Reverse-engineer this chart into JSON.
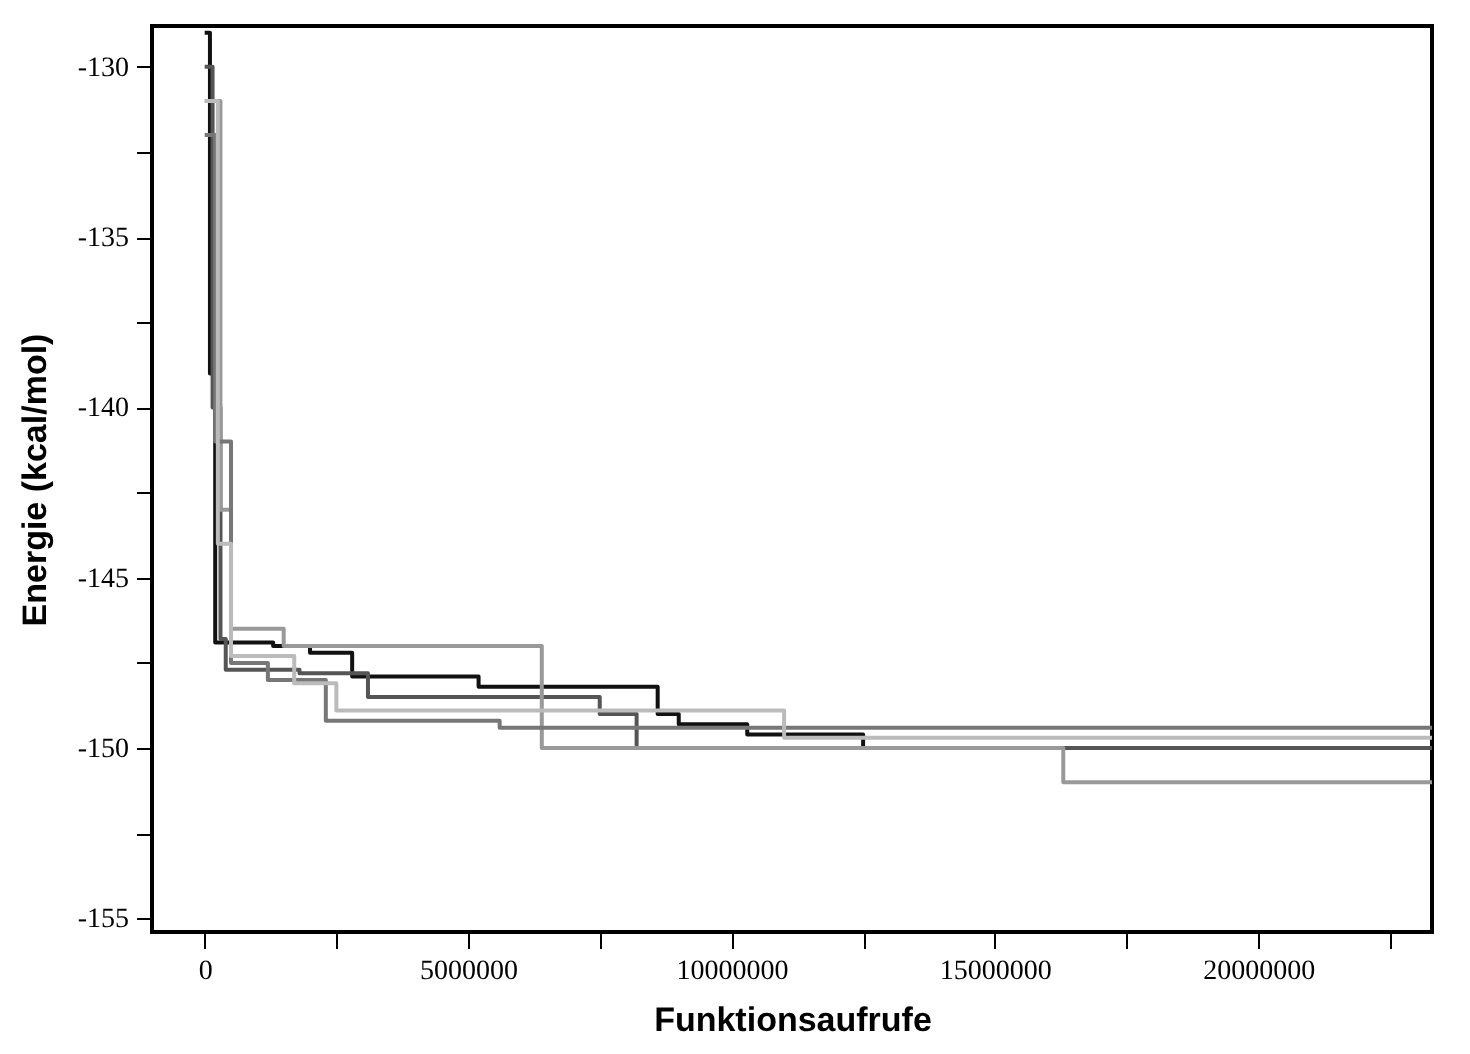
{
  "chart_data": {
    "type": "step",
    "xlabel": "Funktionsaufrufe",
    "ylabel": "Energie (kcal/mol)",
    "xlim": [
      -1000000,
      23300000
    ],
    "ylim": [
      -155.4,
      -128.8
    ],
    "xticks": [
      0,
      {
        "value": 2500000,
        "label": null
      },
      5000000,
      {
        "value": 7500000,
        "label": null
      },
      10000000,
      {
        "value": 12500000,
        "label": null
      },
      15000000,
      {
        "value": 17500000,
        "label": null
      },
      20000000,
      {
        "value": 22500000,
        "label": null
      }
    ],
    "yticks": [
      -155,
      {
        "value": -152.5,
        "label": null
      },
      -150,
      {
        "value": -147.5,
        "label": null
      },
      -145,
      {
        "value": -142.5,
        "label": null
      },
      -140,
      {
        "value": -137.5,
        "label": null
      },
      -135,
      {
        "value": -132.5,
        "label": null
      },
      -130
    ],
    "grid": false,
    "legend": false,
    "marker": "none",
    "line_style": "solid",
    "series": [
      {
        "color": "#111111",
        "x": [
          0,
          100000,
          200000,
          1300000,
          2000000,
          2800000,
          5200000,
          8600000,
          9000000,
          10300000,
          12500000,
          23300000
        ],
        "values": [
          -129,
          -139,
          -146.9,
          -147.0,
          -147.2,
          -147.9,
          -148.2,
          -149.0,
          -149.3,
          -149.6,
          -150.0,
          -150.0
        ]
      },
      {
        "color": "#555555",
        "x": [
          0,
          150000,
          300000,
          400000,
          1800000,
          3100000,
          7500000,
          8200000,
          23300000
        ],
        "values": [
          -130,
          -140,
          -146.8,
          -147.7,
          -147.8,
          -148.5,
          -149.0,
          -150.0,
          -150.0
        ]
      },
      {
        "color": "#999999",
        "x": [
          0,
          300000,
          500000,
          1500000,
          6400000,
          16300000,
          23300000
        ],
        "values": [
          -131,
          -143,
          -146.5,
          -147.0,
          -150.0,
          -151.0,
          -151.0
        ]
      },
      {
        "color": "#777777",
        "x": [
          0,
          200000,
          500000,
          1200000,
          2300000,
          5600000,
          23300000
        ],
        "values": [
          -132,
          -141,
          -147.5,
          -148.0,
          -149.2,
          -149.4,
          -149.4
        ]
      },
      {
        "color": "#bbbbbb",
        "x": [
          0,
          250000,
          500000,
          1700000,
          2500000,
          11000000,
          23300000
        ],
        "values": [
          -131,
          -144,
          -147.3,
          -148.1,
          -148.9,
          -149.7,
          -149.7
        ]
      }
    ]
  }
}
